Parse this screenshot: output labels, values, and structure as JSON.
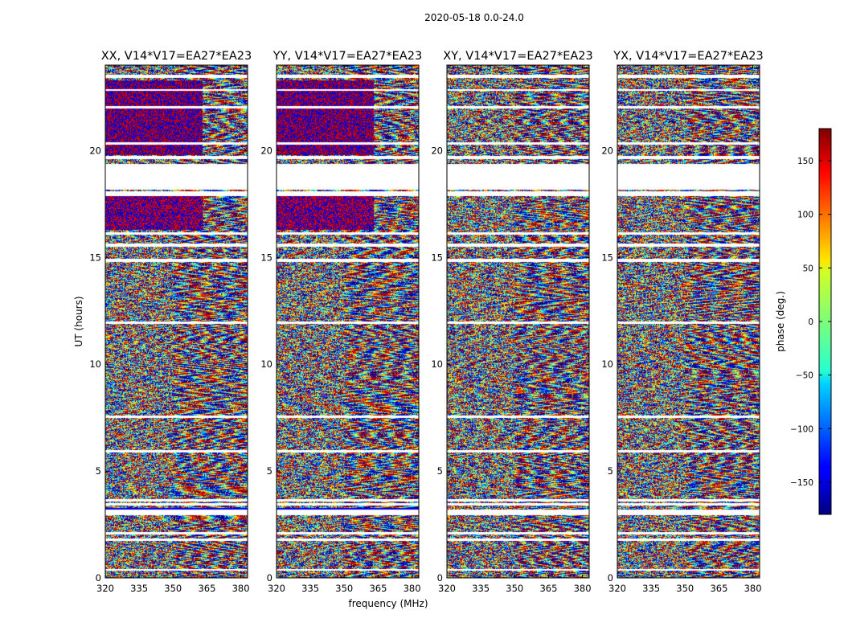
{
  "chart_data": {
    "type": "heatmap",
    "suptitle": "2020-05-18 0.0-24.0",
    "xlabel": "frequency (MHz)",
    "ylabel": "UT (hours)",
    "xlim": [
      320,
      383
    ],
    "ylim": [
      0,
      24
    ],
    "xticks": [
      320,
      335,
      350,
      365,
      380
    ],
    "yticks": [
      0,
      5,
      10,
      15,
      20
    ],
    "panels": [
      {
        "title": "XX, V14*V17=EA27*EA23",
        "polarization": "XX"
      },
      {
        "title": "YY, V14*V17=EA27*EA23",
        "polarization": "YY"
      },
      {
        "title": "XY, V14*V17=EA27*EA23",
        "polarization": "XY"
      },
      {
        "title": "YX, V14*V17=EA27*EA23",
        "polarization": "YX"
      }
    ],
    "flagged_ut_ranges": [
      [
        0.35,
        0.45
      ],
      [
        1.75,
        1.85
      ],
      [
        2.05,
        2.15
      ],
      [
        2.95,
        3.2
      ],
      [
        3.4,
        3.5
      ],
      [
        3.6,
        3.7
      ],
      [
        5.9,
        6.0
      ],
      [
        7.5,
        7.6
      ],
      [
        11.9,
        12.0
      ],
      [
        14.8,
        14.95
      ],
      [
        15.5,
        15.65
      ],
      [
        16.1,
        16.2
      ],
      [
        17.9,
        18.1
      ],
      [
        18.2,
        19.4
      ],
      [
        19.6,
        19.75
      ],
      [
        20.3,
        20.4
      ],
      [
        22.0,
        22.1
      ],
      [
        22.8,
        22.9
      ],
      [
        23.4,
        23.55
      ]
    ],
    "colorbar": {
      "label": "phase (deg.)",
      "range": [
        -180,
        180
      ],
      "ticks": [
        150,
        100,
        50,
        0,
        -50,
        -100,
        -150
      ],
      "tick_labels": [
        "150",
        "100",
        "50",
        "0",
        "−50",
        "−100",
        "−150"
      ],
      "colormap": "jet"
    }
  }
}
